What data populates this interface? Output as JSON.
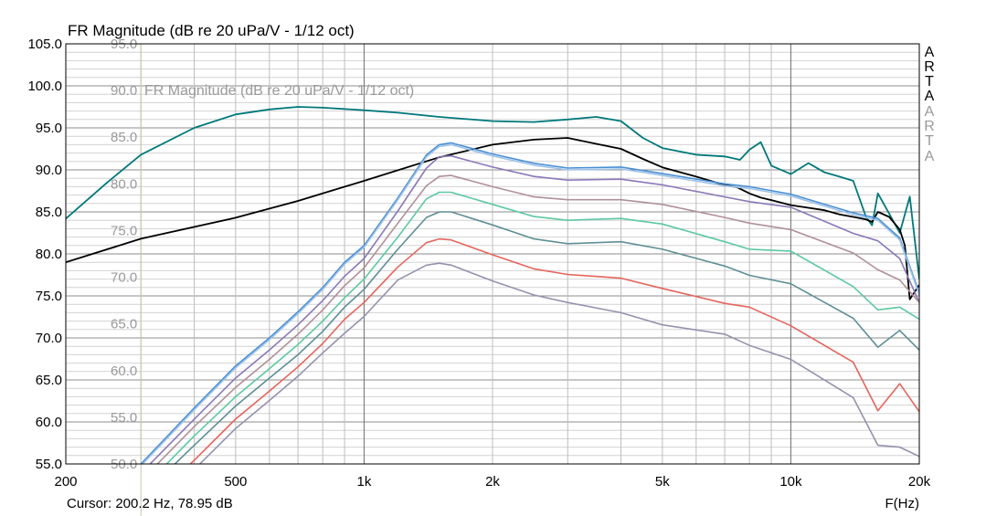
{
  "title": "FR Magnitude (dB re 20 uPa/V - 1/12 oct)",
  "overlay_title": "FR Magnitude (dB re 20 uPa/V - 1/12 oct)",
  "cursor_readout": "Cursor: 200.2 Hz, 78.95 dB",
  "x_axis_label": "F(Hz)",
  "brand_letters": [
    "A",
    "R",
    "T",
    "A"
  ],
  "brand_colors": {
    "primary": "#000000",
    "ghost": "#9a9a9a"
  },
  "chart_data": {
    "type": "line",
    "title": "FR Magnitude (dB re 20 uPa/V - 1/12 oct)",
    "xlabel": "F(Hz)",
    "ylabel": "",
    "xscale": "log",
    "xlim": [
      200,
      20000
    ],
    "ylim": [
      55,
      105
    ],
    "grid": true,
    "y_ticks": [
      "55.0",
      "60.0",
      "65.0",
      "70.0",
      "75.0",
      "80.0",
      "85.0",
      "90.0",
      "95.0",
      "100.0",
      "105.0"
    ],
    "x_ticks": [
      {
        "value": 200,
        "label": "200"
      },
      {
        "value": 500,
        "label": "500"
      },
      {
        "value": 1000,
        "label": "1k"
      },
      {
        "value": 2000,
        "label": "2k"
      },
      {
        "value": 5000,
        "label": "5k"
      },
      {
        "value": 10000,
        "label": "10k"
      },
      {
        "value": 20000,
        "label": "20k"
      }
    ],
    "overlay": {
      "x_start": 300,
      "ylim": [
        50,
        95
      ],
      "y_ticks": [
        "50.0",
        "55.0",
        "60.0",
        "65.0",
        "70.0",
        "75.0",
        "80.0",
        "85.0",
        "90.0",
        "95.0"
      ]
    },
    "series": [
      {
        "color": "#00787a",
        "axis": "primary",
        "x": [
          200,
          250,
          300,
          400,
          500,
          600,
          700,
          800,
          1000,
          1200,
          1500,
          2000,
          2500,
          3000,
          3500,
          4000,
          4500,
          5000,
          6000,
          7000,
          7600,
          8000,
          8500,
          9000,
          10000,
          11000,
          12000,
          13000,
          14000,
          15000,
          15500,
          16000,
          17000,
          18000,
          19000,
          20000
        ],
        "y": [
          84.2,
          88.5,
          91.8,
          95,
          96.6,
          97.2,
          97.5,
          97.4,
          97.1,
          96.8,
          96.3,
          95.8,
          95.7,
          96,
          96.3,
          95.8,
          93.8,
          92.6,
          91.8,
          91.6,
          91.2,
          92.4,
          93.3,
          90.5,
          89.5,
          90.8,
          89.7,
          89.2,
          88.7,
          84.4,
          83.4,
          87.2,
          84.8,
          82.5,
          86.8,
          77
        ]
      },
      {
        "color": "#000000",
        "axis": "primary",
        "x": [
          200,
          300,
          500,
          700,
          1000,
          1500,
          2000,
          2500,
          3000,
          3500,
          4000,
          4500,
          5000,
          6000,
          7000,
          7500,
          8000,
          8500,
          9000,
          10000,
          12000,
          13000,
          14000,
          15000,
          15500,
          16000,
          17000,
          18000,
          18500,
          19000,
          20000
        ],
        "y": [
          79,
          81.8,
          84.3,
          86.3,
          88.7,
          91.5,
          93,
          93.6,
          93.8,
          93.1,
          92.5,
          91.3,
          90.3,
          89.2,
          88.2,
          87.9,
          87.2,
          86.7,
          86.4,
          85.8,
          85.2,
          84.7,
          84.4,
          84.1,
          83.8,
          85,
          84.4,
          82.9,
          81,
          74.6,
          76.3
        ]
      },
      {
        "color": "#4a8fd4",
        "axis": "secondary",
        "x": [
          300,
          400,
          500,
          600,
          700,
          800,
          900,
          1000,
          1200,
          1400,
          1500,
          1600,
          2000,
          2500,
          3000,
          4000,
          5000,
          7000,
          8000,
          10000,
          14000,
          16000,
          18000,
          20000
        ],
        "y": [
          50,
          56,
          60.5,
          63.5,
          66.3,
          68.9,
          71.6,
          73.4,
          78.5,
          83.1,
          84.2,
          84.4,
          83.2,
          82.2,
          81.7,
          81.8,
          81.1,
          80,
          79.7,
          78.9,
          76.9,
          76.3,
          74.2,
          68.3
        ]
      },
      {
        "color": "#9ec2e6",
        "axis": "secondary",
        "x": [
          300,
          400,
          500,
          600,
          700,
          800,
          900,
          1000,
          1200,
          1400,
          1500,
          1600,
          2000,
          2500,
          3000,
          4000,
          5000,
          7000,
          8000,
          10000,
          14000,
          16000,
          18000,
          20000
        ],
        "y": [
          49.8,
          55.8,
          60.3,
          63.3,
          66.1,
          68.7,
          71.4,
          73.2,
          78.3,
          82.9,
          84,
          84.2,
          83,
          82,
          81.5,
          81.6,
          80.9,
          79.8,
          79.5,
          78.7,
          76.7,
          76.1,
          74,
          68.1
        ]
      },
      {
        "color": "#8a78b8",
        "axis": "secondary",
        "x": [
          300,
          400,
          500,
          600,
          700,
          800,
          900,
          1000,
          1200,
          1400,
          1500,
          1600,
          2000,
          2500,
          3000,
          4000,
          5000,
          7000,
          8000,
          10000,
          14000,
          16000,
          18000,
          20000
        ],
        "y": [
          49,
          54.8,
          59.2,
          62.2,
          64.9,
          67.5,
          70.1,
          72,
          77.1,
          81.7,
          82.9,
          83,
          81.8,
          80.8,
          80.4,
          80.5,
          79.9,
          78.6,
          78.1,
          77.5,
          74.7,
          73.9,
          72,
          67.3
        ]
      },
      {
        "color": "#b09098",
        "axis": "secondary",
        "x": [
          300,
          400,
          500,
          600,
          700,
          800,
          900,
          1000,
          1200,
          1400,
          1500,
          1600,
          2000,
          2500,
          3000,
          4000,
          5000,
          7000,
          8000,
          10000,
          14000,
          16000,
          18000,
          20000
        ],
        "y": [
          48.2,
          54,
          58.2,
          61.2,
          63.9,
          66.5,
          69.1,
          71,
          75.8,
          79.8,
          80.8,
          80.9,
          79.7,
          78.6,
          78.3,
          78.3,
          77.8,
          76.4,
          75.8,
          75.1,
          72.6,
          70.8,
          69.7,
          67.3
        ]
      },
      {
        "color": "#5cc9a0",
        "axis": "secondary",
        "x": [
          300,
          400,
          500,
          600,
          700,
          800,
          900,
          1000,
          1200,
          1400,
          1500,
          1600,
          2000,
          2500,
          3000,
          4000,
          5000,
          7000,
          8000,
          10000,
          14000,
          16000,
          18000,
          20000
        ],
        "y": [
          47.2,
          53,
          57.2,
          60.2,
          62.8,
          65.3,
          67.8,
          69.8,
          74.3,
          78.4,
          79.1,
          79.1,
          77.8,
          76.5,
          76.1,
          76.3,
          75.7,
          73.8,
          73,
          72.8,
          69,
          66.5,
          66.8,
          65.5
        ]
      },
      {
        "color": "#5f8f96",
        "axis": "secondary",
        "x": [
          300,
          400,
          500,
          600,
          700,
          800,
          900,
          1000,
          1200,
          1400,
          1500,
          1600,
          2000,
          2500,
          3000,
          4000,
          5000,
          7000,
          8000,
          10000,
          14000,
          16000,
          18000,
          20000
        ],
        "y": [
          46.5,
          52,
          56.2,
          59.2,
          61.7,
          64.2,
          66.8,
          68.7,
          73,
          76.4,
          77,
          77,
          75.6,
          74.1,
          73.6,
          73.8,
          73,
          71.2,
          70.2,
          69.3,
          65.6,
          62.5,
          64.3,
          62.2
        ]
      },
      {
        "color": "#e6645c",
        "axis": "secondary",
        "x": [
          300,
          400,
          500,
          600,
          700,
          800,
          900,
          1000,
          1200,
          1400,
          1500,
          1600,
          2000,
          2500,
          3000,
          4000,
          5000,
          7000,
          8000,
          10000,
          14000,
          16000,
          18000,
          20000
        ],
        "y": [
          44.8,
          50.4,
          54.8,
          57.8,
          60.4,
          62.9,
          65.5,
          67.3,
          71.1,
          73.7,
          74.1,
          74,
          72.4,
          70.9,
          70.3,
          69.9,
          68.8,
          67.2,
          66.8,
          64.8,
          60.9,
          55.7,
          58.6,
          55.6
        ]
      },
      {
        "color": "#9393ad",
        "axis": "secondary",
        "x": [
          300,
          400,
          500,
          600,
          700,
          800,
          900,
          1000,
          1200,
          1400,
          1500,
          1600,
          2000,
          2500,
          3000,
          4000,
          5000,
          7000,
          8000,
          10000,
          14000,
          16000,
          18000,
          20000
        ],
        "y": [
          43.8,
          49.4,
          53.8,
          56.8,
          59.4,
          61.9,
          64,
          65.8,
          69.7,
          71.3,
          71.5,
          71.3,
          69.6,
          68.1,
          67.3,
          66.2,
          64.9,
          63.9,
          62.7,
          61.2,
          57.1,
          52,
          51.8,
          50.8
        ]
      }
    ]
  }
}
